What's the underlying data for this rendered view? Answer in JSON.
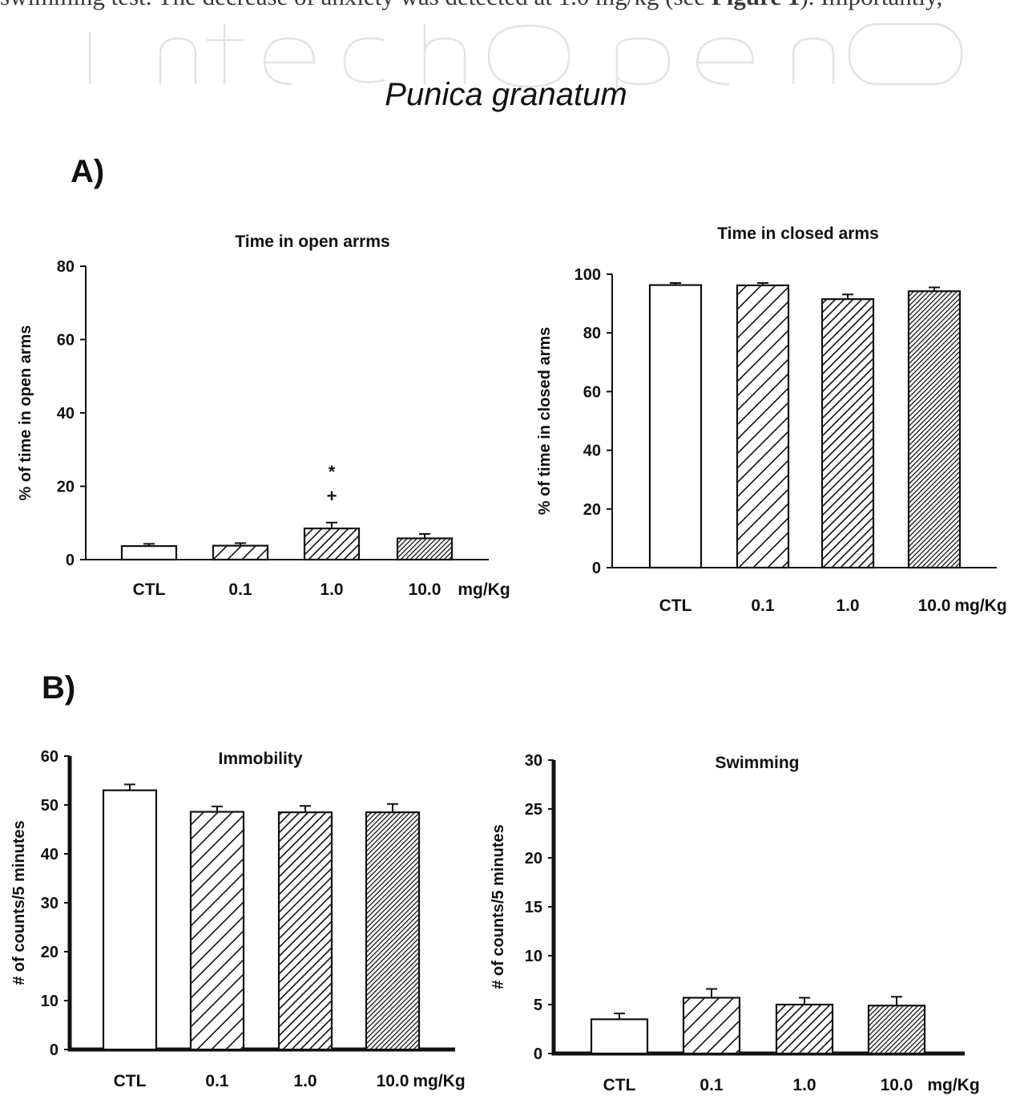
{
  "page": {
    "top_text_parts": [
      {
        "text": "swimming test. The decrease of anxiety was detected at 1.0 mg/kg (see ",
        "bold": false
      },
      {
        "text": "Figure 1",
        "bold": true
      },
      {
        "text": "). Importantly,",
        "bold": false
      }
    ],
    "watermark": "IntechOpen",
    "figure_title": "Punica granatum",
    "panel_a_label": "A)",
    "panel_b_label": "B)"
  },
  "chart_data": [
    {
      "type": "bar",
      "title": "Time in open arrms",
      "ylabel": "% of time in open arms",
      "xlabel": "",
      "unit_label": "mg/Kg",
      "categories": [
        "CTL",
        "0.1",
        "1.0",
        "10.0"
      ],
      "values": [
        3.7,
        3.8,
        8.5,
        5.8
      ],
      "errors": [
        0.6,
        0.7,
        1.6,
        1.2
      ],
      "ylim": [
        0,
        80
      ],
      "yticks": [
        "0",
        "20",
        "40",
        "60",
        "80"
      ],
      "annotations": [
        {
          "category": "1.0",
          "symbols": [
            "*",
            "+"
          ]
        }
      ],
      "fills": [
        "empty",
        "hatch-sparse",
        "hatch-medium",
        "hatch-dense"
      ],
      "grid": false
    },
    {
      "type": "bar",
      "title": "Time in closed arms",
      "ylabel": "% of time in closed arms",
      "xlabel": "",
      "unit_label": "mg/Kg",
      "categories": [
        "CTL",
        "0.1",
        "1.0",
        "10.0"
      ],
      "values": [
        96.3,
        96.2,
        91.5,
        94.2
      ],
      "errors": [
        0.7,
        0.8,
        1.6,
        1.3
      ],
      "ylim": [
        0,
        100
      ],
      "yticks": [
        "0",
        "20",
        "40",
        "60",
        "80",
        "100"
      ],
      "fills": [
        "empty",
        "hatch-sparse",
        "hatch-medium",
        "hatch-dense"
      ],
      "grid": false
    },
    {
      "type": "bar",
      "title": "Immobility",
      "ylabel": "# of counts/5 minutes",
      "xlabel": "",
      "unit_label": "mg/Kg",
      "categories": [
        "CTL",
        "0.1",
        "1.0",
        "10.0"
      ],
      "values": [
        53.0,
        48.6,
        48.5,
        48.5
      ],
      "errors": [
        1.2,
        1.1,
        1.3,
        1.7
      ],
      "ylim": [
        0,
        60
      ],
      "yticks": [
        "0",
        "10",
        "20",
        "30",
        "40",
        "50",
        "60"
      ],
      "fills": [
        "empty",
        "hatch-sparse",
        "hatch-medium",
        "hatch-dense"
      ],
      "grid": false
    },
    {
      "type": "bar",
      "title": "Swimming",
      "ylabel": "# of counts/5 minutes",
      "xlabel": "",
      "unit_label": "mg/Kg",
      "categories": [
        "CTL",
        "0.1",
        "1.0",
        "10.0"
      ],
      "values": [
        3.5,
        5.7,
        5.0,
        4.9
      ],
      "errors": [
        0.6,
        0.9,
        0.7,
        0.9
      ],
      "ylim": [
        0,
        30
      ],
      "yticks": [
        "0",
        "5",
        "10",
        "15",
        "20",
        "25",
        "30"
      ],
      "fills": [
        "empty",
        "hatch-sparse",
        "hatch-medium",
        "hatch-dense"
      ],
      "grid": false
    }
  ]
}
